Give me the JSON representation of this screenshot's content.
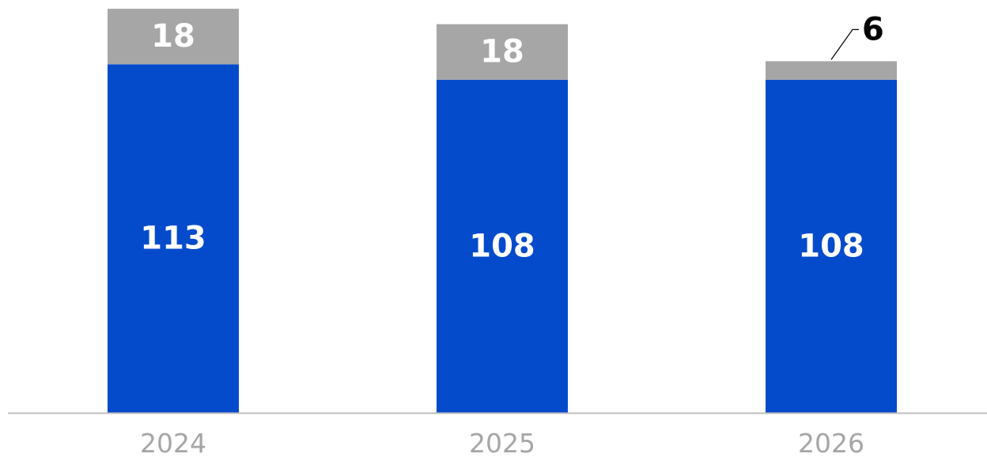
{
  "chart_data": {
    "type": "bar",
    "stacked": true,
    "categories": [
      "2024",
      "2025",
      "2026"
    ],
    "series": [
      {
        "values": [
          113,
          108,
          108
        ],
        "color": "#044bcc"
      },
      {
        "values": [
          18,
          18,
          6
        ],
        "color": "#a6a6a6"
      }
    ],
    "value_labels": {
      "bottom": [
        "113",
        "108",
        "108"
      ],
      "top": [
        "18",
        "18",
        "6"
      ]
    },
    "colors": {
      "inside_label": "#ffffff",
      "outside_label": "#000000",
      "axis": "#bfbfbf",
      "tick_label": "#a6a6a6"
    },
    "grid": false,
    "legend": "none"
  }
}
